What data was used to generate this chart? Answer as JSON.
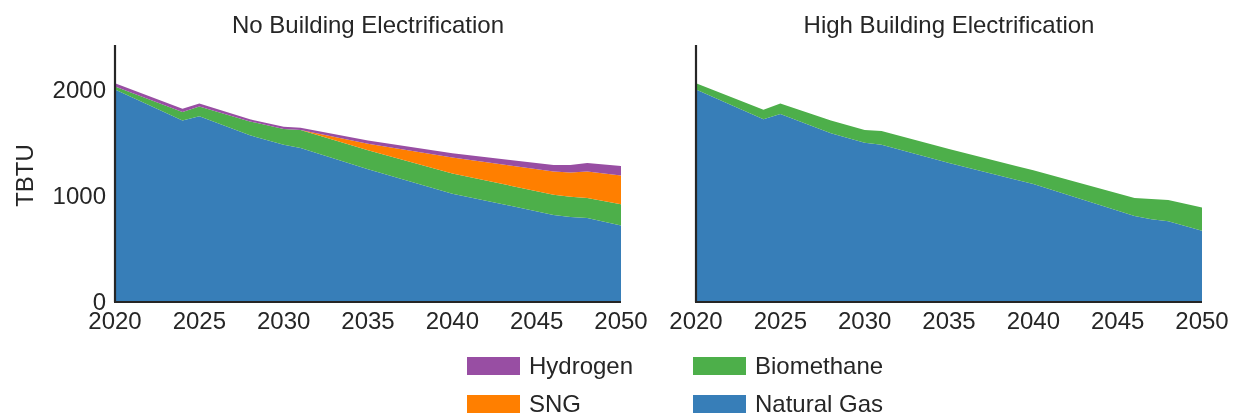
{
  "chart_data": [
    {
      "type": "area",
      "stacked": true,
      "title": "No Building Electrification",
      "ylabel": "TBTU",
      "x": [
        2020,
        2024,
        2025,
        2028,
        2030,
        2031,
        2035,
        2040,
        2046,
        2047,
        2048,
        2050
      ],
      "series": [
        {
          "name": "Natural Gas",
          "color": "#377eb8",
          "values": [
            2000,
            1710,
            1750,
            1570,
            1480,
            1450,
            1250,
            1020,
            820,
            800,
            790,
            720
          ]
        },
        {
          "name": "Biomethane",
          "color": "#4daf4a",
          "values": [
            30,
            80,
            90,
            130,
            150,
            170,
            180,
            190,
            190,
            190,
            190,
            200
          ]
        },
        {
          "name": "SNG",
          "color": "#ff7f00",
          "values": [
            0,
            0,
            0,
            0,
            0,
            0,
            60,
            150,
            220,
            230,
            250,
            270
          ]
        },
        {
          "name": "Hydrogen",
          "color": "#984ea3",
          "values": [
            30,
            30,
            30,
            20,
            20,
            20,
            30,
            40,
            60,
            70,
            80,
            90
          ]
        }
      ],
      "xlim": [
        2020,
        2050
      ],
      "xticks": [
        2020,
        2025,
        2030,
        2035,
        2040,
        2045,
        2050
      ],
      "ylim": [
        0,
        2420
      ],
      "yticks": [
        0,
        1000,
        2000
      ],
      "legend": "bottom"
    },
    {
      "type": "area",
      "stacked": true,
      "title": "High Building Electrification",
      "x": [
        2020,
        2024,
        2025,
        2028,
        2030,
        2031,
        2035,
        2040,
        2046,
        2047,
        2048,
        2050
      ],
      "series": [
        {
          "name": "Natural Gas",
          "color": "#377eb8",
          "values": [
            2000,
            1720,
            1770,
            1590,
            1500,
            1480,
            1310,
            1110,
            810,
            780,
            760,
            670
          ]
        },
        {
          "name": "Biomethane",
          "color": "#4daf4a",
          "values": [
            60,
            90,
            100,
            120,
            120,
            130,
            130,
            130,
            170,
            190,
            200,
            220
          ]
        }
      ],
      "xlim": [
        2020,
        2050
      ],
      "xticks": [
        2020,
        2025,
        2030,
        2035,
        2040,
        2045,
        2050
      ],
      "ylim": [
        0,
        2420
      ],
      "tick_labels": "x"
    }
  ]
}
